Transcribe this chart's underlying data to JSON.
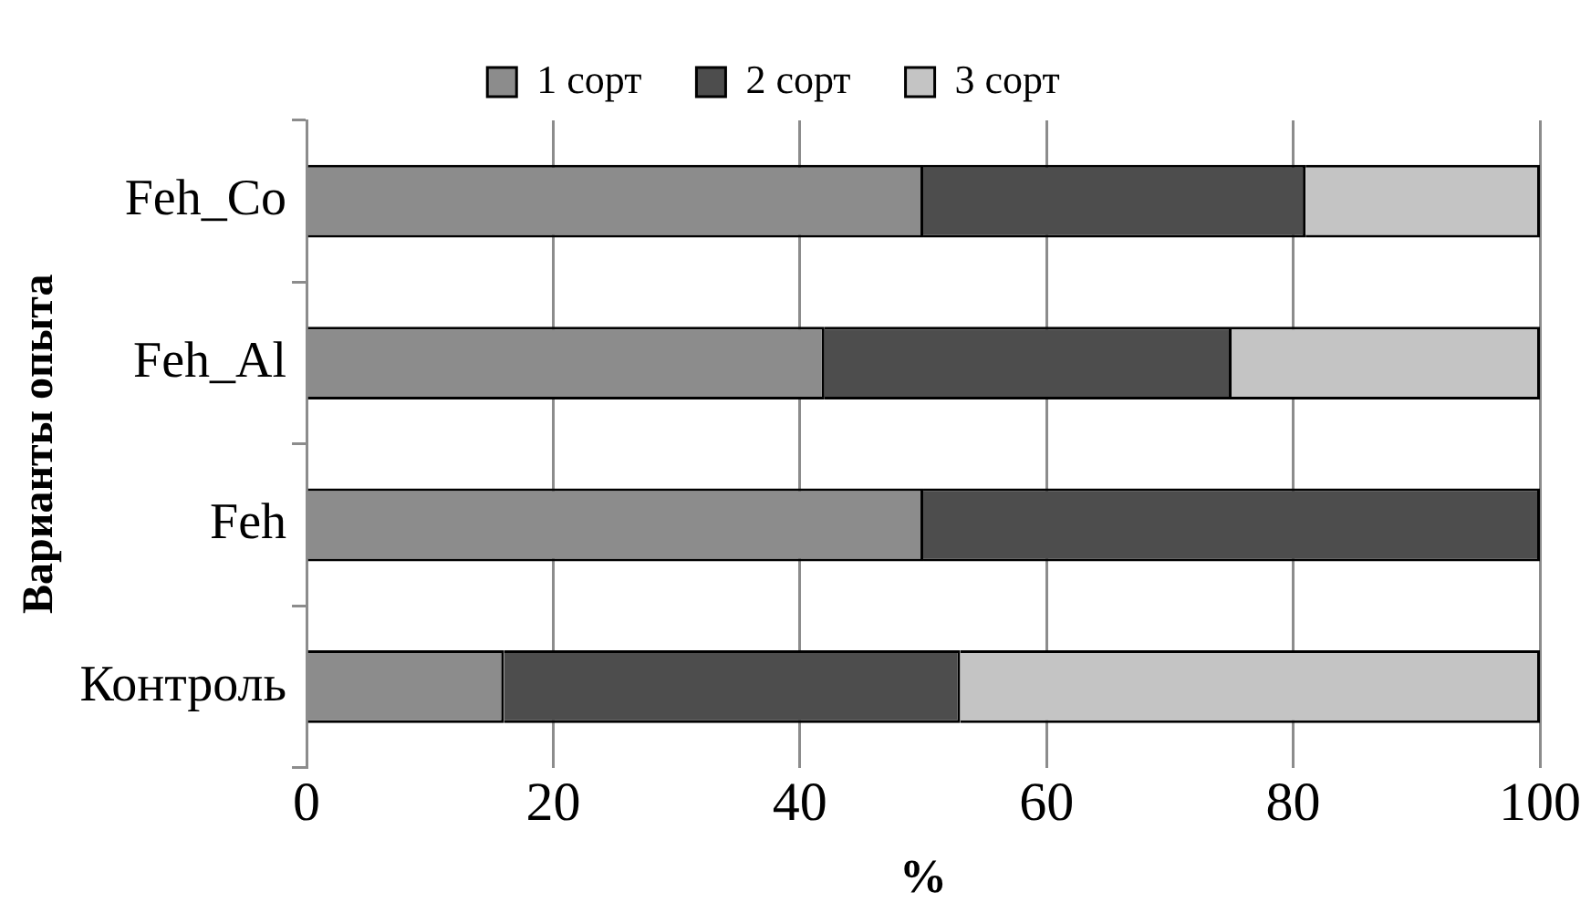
{
  "chart_data": {
    "type": "bar",
    "orientation": "horizontal",
    "stacked": true,
    "categories": [
      "Feh_Co",
      "Feh_Al",
      "Feh",
      "Контроль"
    ],
    "xlabel": "%",
    "ylabel": "Варианты опыта",
    "xlim": [
      0,
      100
    ],
    "xticks": [
      0,
      20,
      40,
      60,
      80,
      100
    ],
    "grid": "x",
    "legend": "top",
    "series": [
      {
        "name": "1 сорт",
        "color": "#8c8c8c",
        "values": [
          50,
          42,
          50,
          16
        ]
      },
      {
        "name": "2 сорт",
        "color": "#4d4d4d",
        "values": [
          31,
          33,
          50,
          37
        ]
      },
      {
        "name": "3 сорт",
        "color": "#c4c4c4",
        "values": [
          19,
          25,
          0,
          47
        ]
      }
    ]
  }
}
